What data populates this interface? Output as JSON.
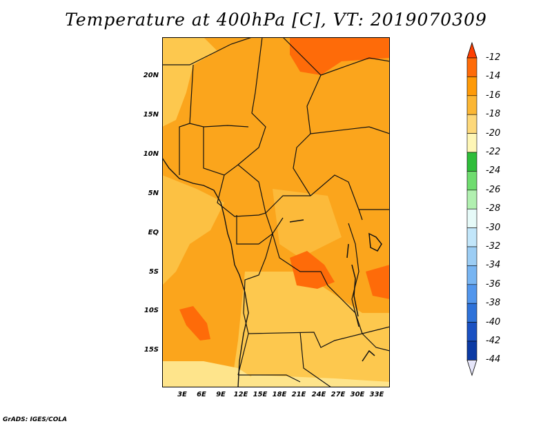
{
  "title": "Temperature at 400hPa [C], VT: 2019070309",
  "credit": "GrADS: IGES/COLA",
  "map": {
    "region": "Central Africa",
    "lat_ticks": [
      "20N",
      "15N",
      "10N",
      "5N",
      "EQ",
      "5S",
      "10S",
      "15S"
    ],
    "lon_ticks": [
      "3E",
      "6E",
      "9E",
      "12E",
      "15E",
      "18E",
      "21E",
      "24E",
      "27E",
      "30E",
      "33E"
    ],
    "background_color": "#fba51c",
    "regions": [
      {
        "name": "northeast-warm-zone",
        "value": "-14",
        "color": "#fe6b09"
      },
      {
        "name": "congo-warm-patch",
        "value": "-14",
        "color": "#fe6b09"
      },
      {
        "name": "angola-warm-patch",
        "value": "-14",
        "color": "#fe6b09"
      },
      {
        "name": "lake-region-warm-patch",
        "value": "-14",
        "color": "#fe6b09"
      },
      {
        "name": "western-cool-band",
        "value": "-18",
        "color": "#fdc84e"
      },
      {
        "name": "southern-cool-zone",
        "value": "-18",
        "color": "#fdc84e"
      },
      {
        "name": "south-edge-cool-zone",
        "value": "-20",
        "color": "#fee48b"
      }
    ]
  },
  "colorbar": {
    "levels": [
      "-12",
      "-14",
      "-16",
      "-18",
      "-20",
      "-22",
      "-24",
      "-26",
      "-28",
      "-30",
      "-32",
      "-34",
      "-36",
      "-38",
      "-40",
      "-42",
      "-44"
    ],
    "colors": [
      "#fe3f02",
      "#fe6b09",
      "#fe9a08",
      "#fbb634",
      "#fdd87a",
      "#fef6b6",
      "#2fbd3a",
      "#6fdc6f",
      "#b1f0b0",
      "#e6faf8",
      "#c2e6fa",
      "#9ccdf4",
      "#78b5f2",
      "#5296ec",
      "#2e72d9",
      "#1a51c2",
      "#0b3aa4",
      "#0a0f77"
    ],
    "top_color": "#fe3f02",
    "bottom_color": "#e6e6fa"
  }
}
